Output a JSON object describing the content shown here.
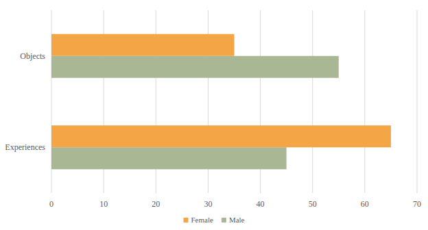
{
  "chart_data": {
    "type": "bar",
    "orientation": "horizontal",
    "categories": [
      "Objects",
      "Experiences"
    ],
    "series": [
      {
        "name": "Female",
        "color": "#f4a646",
        "values": [
          35,
          65
        ]
      },
      {
        "name": "Male",
        "color": "#a9b794",
        "values": [
          55,
          45
        ]
      }
    ],
    "xlim": [
      0,
      70
    ],
    "xticks": [
      0,
      10,
      20,
      30,
      40,
      50,
      60,
      70
    ],
    "grid": true,
    "legend": "bottom"
  }
}
